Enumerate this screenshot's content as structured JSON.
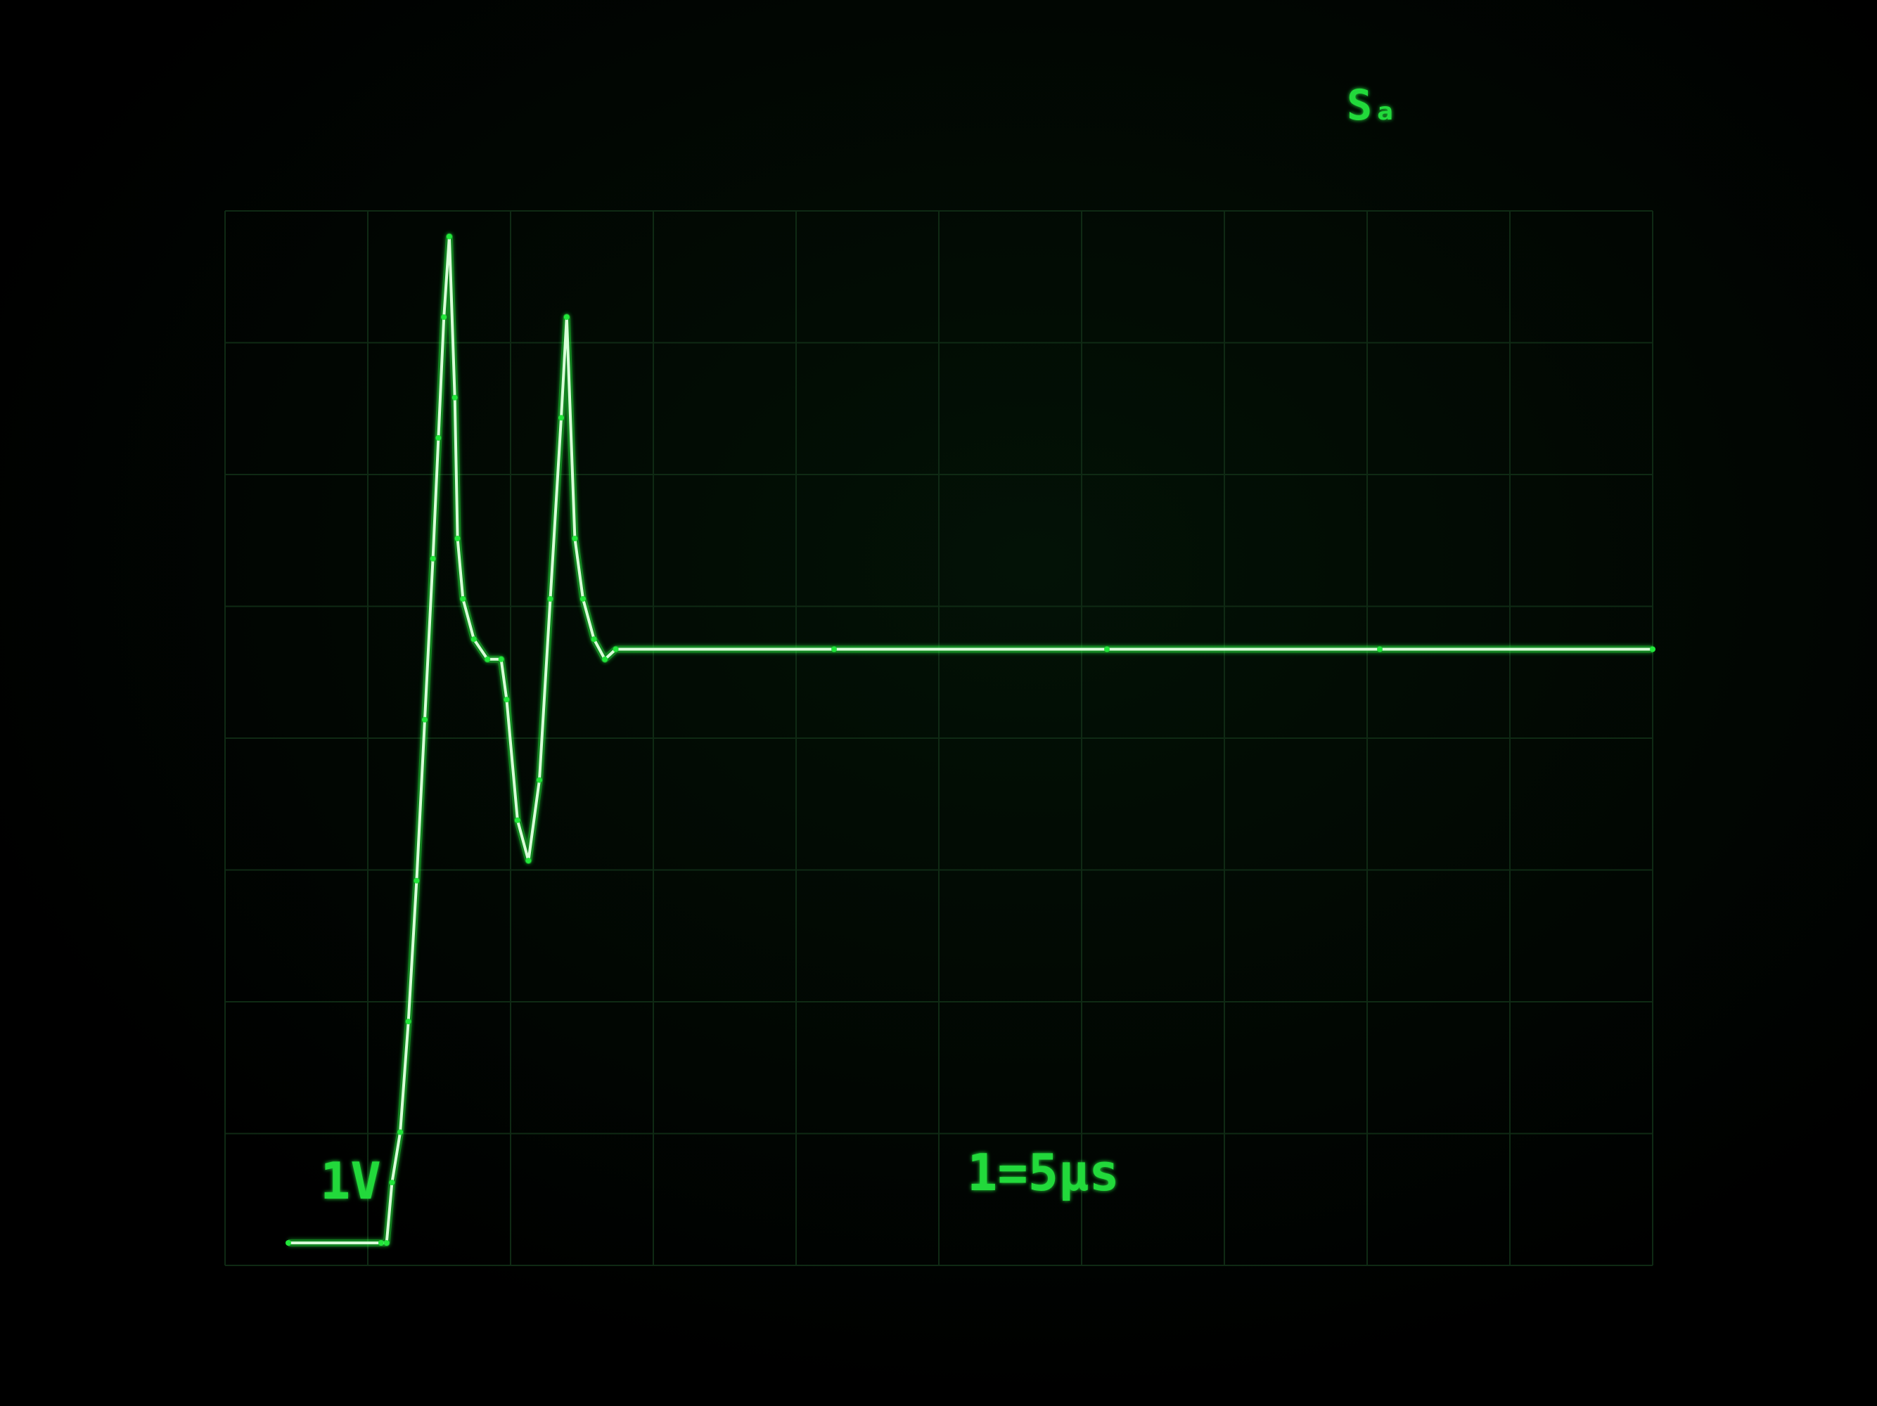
{
  "screen": {
    "trace_color": "#22e63a",
    "trace_core_color": "#d8ffd8",
    "graticule_color": "#0f2a14",
    "background_color": "#000000"
  },
  "readouts": {
    "channel_scale": "1V",
    "timebase": "1=5μs",
    "top_right": "Sₐ"
  },
  "chart_data": {
    "type": "line",
    "title": "",
    "xlabel": "",
    "ylabel": "",
    "grid": true,
    "xlim": [
      0,
      50
    ],
    "ylim": [
      0,
      5.1
    ],
    "series": [
      {
        "color": "#22e63a",
        "points": [
          [
            0.0,
            0.0
          ],
          [
            3.4,
            0.0
          ],
          [
            3.6,
            0.0
          ],
          [
            3.8,
            0.3
          ],
          [
            4.1,
            0.55
          ],
          [
            4.4,
            1.1
          ],
          [
            4.7,
            1.8
          ],
          [
            5.0,
            2.6
          ],
          [
            5.3,
            3.4
          ],
          [
            5.5,
            4.0
          ],
          [
            5.7,
            4.6
          ],
          [
            5.9,
            5.0
          ],
          [
            6.1,
            4.2
          ],
          [
            6.2,
            3.5
          ],
          [
            6.4,
            3.2
          ],
          [
            6.8,
            3.0
          ],
          [
            7.3,
            2.9
          ],
          [
            7.8,
            2.9
          ],
          [
            8.0,
            2.7
          ],
          [
            8.4,
            2.1
          ],
          [
            8.8,
            1.9
          ],
          [
            9.2,
            2.3
          ],
          [
            9.6,
            3.2
          ],
          [
            10.0,
            4.1
          ],
          [
            10.2,
            4.6
          ],
          [
            10.5,
            3.5
          ],
          [
            10.8,
            3.2
          ],
          [
            11.2,
            3.0
          ],
          [
            11.6,
            2.9
          ],
          [
            12.0,
            2.95
          ],
          [
            20.0,
            2.95
          ],
          [
            30.0,
            2.95
          ],
          [
            40.0,
            2.95
          ],
          [
            50.0,
            2.95
          ]
        ]
      }
    ]
  }
}
